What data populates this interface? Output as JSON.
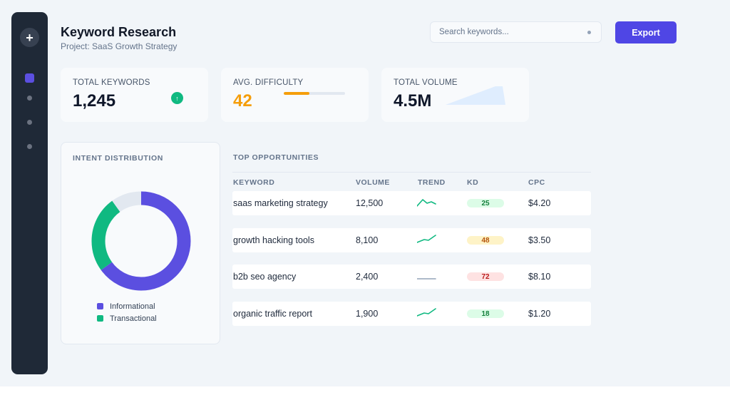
{
  "header": {
    "title": "Keyword Research",
    "subtitle": "Project: SaaS Growth Strategy",
    "search_placeholder": "Search keywords...",
    "export_label": "Export"
  },
  "sidebar": {
    "add_label": "+"
  },
  "stats": {
    "total_keywords": {
      "label": "TOTAL KEYWORDS",
      "value": "1,245",
      "trend_icon": "↑"
    },
    "avg_difficulty": {
      "label": "AVG. DIFFICULTY",
      "value": "42",
      "level": 0.42
    },
    "total_volume": {
      "label": "TOTAL VOLUME",
      "value": "4.5M"
    }
  },
  "intent": {
    "title": "INTENT DISTRIBUTION",
    "segments": [
      {
        "name": "Informational",
        "share": 0.65,
        "color": "#5b4fe0"
      },
      {
        "name": "Transactional",
        "share": 0.25,
        "color": "#10b981"
      },
      {
        "name": "",
        "share": 0.1,
        "color": "#e2e8f0"
      }
    ]
  },
  "opportunities": {
    "title": "TOP OPPORTUNITIES",
    "columns": [
      "KEYWORD",
      "VOLUME",
      "TREND",
      "KD",
      "CPC"
    ],
    "rows": [
      {
        "keyword": "saas marketing strategy",
        "volume": "12,500",
        "trend": "up-down",
        "kd": "25",
        "kd_level": "easy",
        "cpc": "$4.20"
      },
      {
        "keyword": "growth hacking tools",
        "volume": "8,100",
        "trend": "up",
        "kd": "48",
        "kd_level": "medium",
        "cpc": "$3.50"
      },
      {
        "keyword": "b2b seo agency",
        "volume": "2,400",
        "trend": "flat",
        "kd": "72",
        "kd_level": "hard",
        "cpc": "$8.10"
      },
      {
        "keyword": "organic traffic report",
        "volume": "1,900",
        "trend": "up",
        "kd": "18",
        "kd_level": "easy",
        "cpc": "$1.20"
      }
    ]
  },
  "colors": {
    "accent": "#4f46e5",
    "sidebar": "#1f2937",
    "success": "#10b981",
    "warning": "#f59e0b",
    "kd_easy_bg": "#dcfce7",
    "kd_easy_fg": "#15803d",
    "kd_medium_bg": "#fef3c7",
    "kd_medium_fg": "#b45309",
    "kd_hard_bg": "#fee2e2",
    "kd_hard_fg": "#b91c1c"
  },
  "icons": {
    "search": "search-icon",
    "add": "plus-icon",
    "trend_up": "arrow-up-icon"
  }
}
